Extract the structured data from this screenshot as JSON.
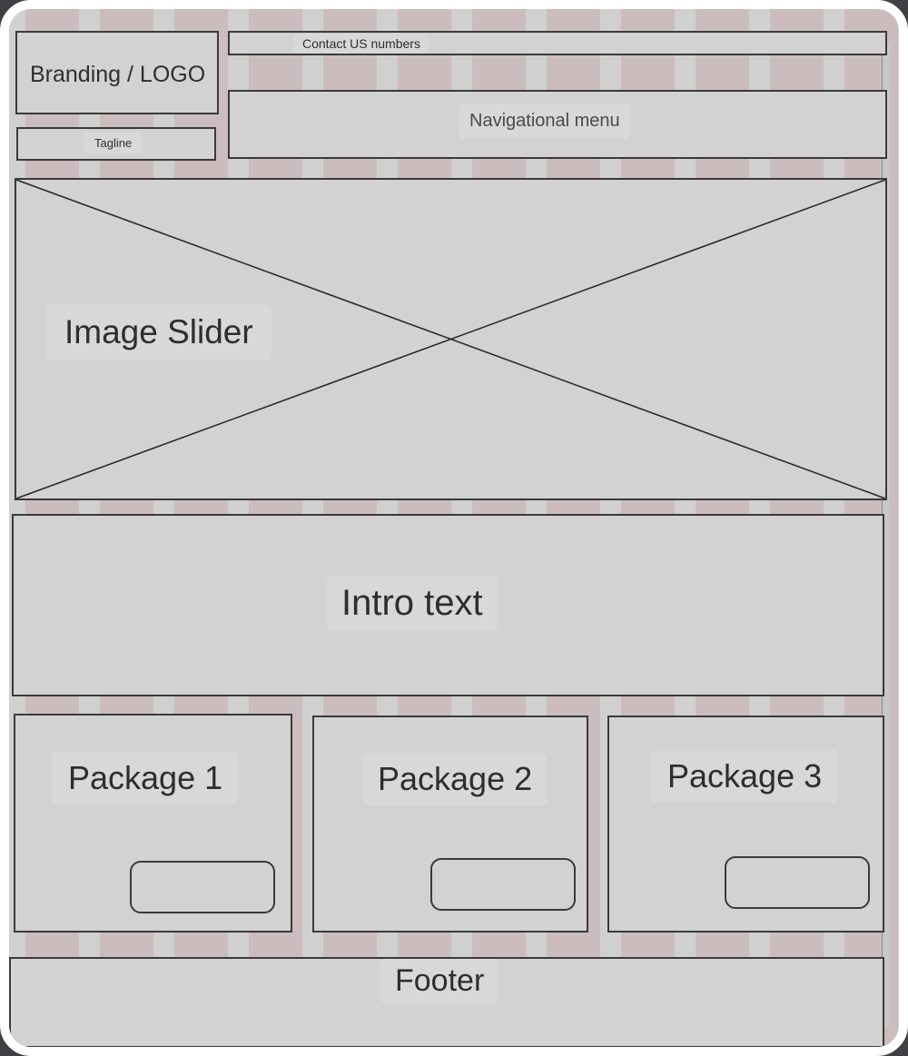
{
  "wireframe": {
    "logo": {
      "label": "Branding / LOGO"
    },
    "tagline": {
      "label": "Tagline"
    },
    "contact": {
      "label": "Contact US numbers"
    },
    "nav": {
      "label": "Navigational menu"
    },
    "slider": {
      "label": "Image Slider"
    },
    "intro": {
      "label": "Intro text"
    },
    "packages": [
      {
        "label": "Package 1"
      },
      {
        "label": "Package 2"
      },
      {
        "label": "Package 3"
      }
    ],
    "footer": {
      "label": "Footer"
    }
  },
  "colors": {
    "background": "#d0d0d0",
    "grid_tile": "#cbbcbd",
    "outline": "#3a3a3a",
    "text": "#2e2e2e"
  }
}
